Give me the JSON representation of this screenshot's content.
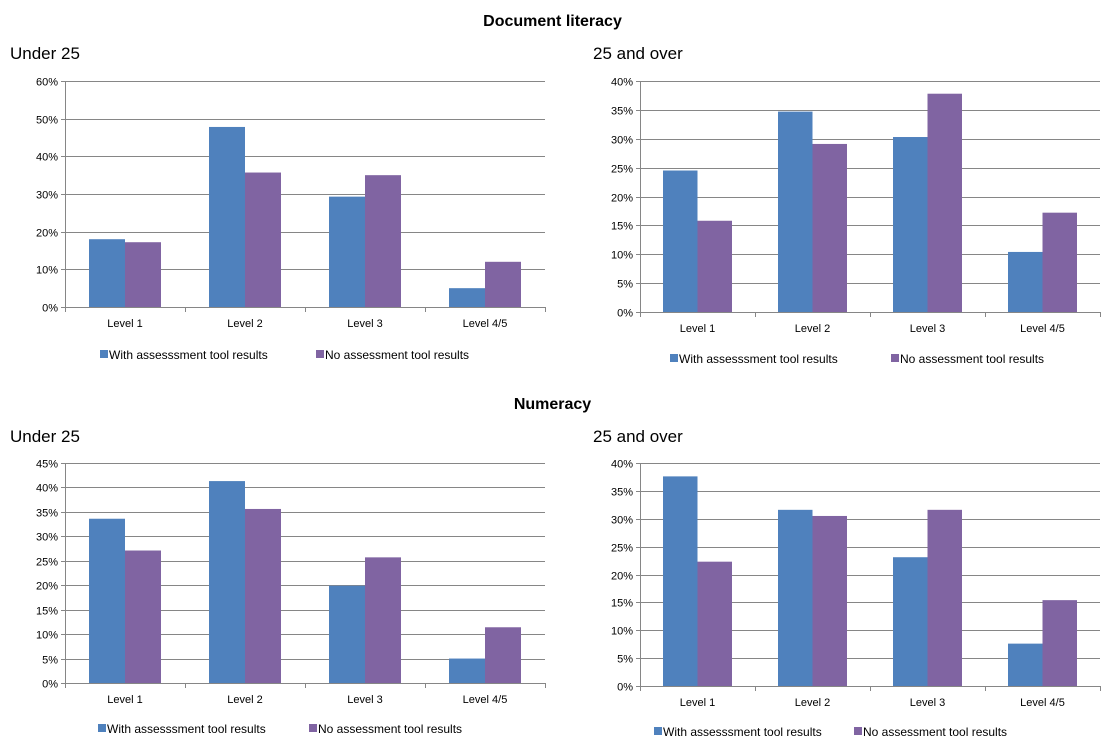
{
  "sections": [
    {
      "title": "Document literacy"
    },
    {
      "title": "Numeracy"
    }
  ],
  "chart_data": [
    {
      "type": "bar",
      "title": "Under 25",
      "categories": [
        "Level 1",
        "Level 2",
        "Level 3",
        "Level 4/5"
      ],
      "series": [
        {
          "name": "With assesssment tool results",
          "values": [
            18,
            47.8,
            29.3,
            5
          ]
        },
        {
          "name": "No assessment tool results",
          "values": [
            17.2,
            35.7,
            35,
            12
          ]
        }
      ],
      "ylim": [
        0,
        60
      ],
      "yticks": [
        0,
        10,
        20,
        30,
        40,
        50,
        60
      ],
      "ytick_labels": [
        "0%",
        "10%",
        "20%",
        "30%",
        "40%",
        "50%",
        "60%"
      ],
      "grid": true,
      "legend_position": "bottom"
    },
    {
      "type": "bar",
      "title": "25 and over",
      "categories": [
        "Level 1",
        "Level 2",
        "Level 3",
        "Level 4/5"
      ],
      "series": [
        {
          "name": "With assesssment tool results",
          "values": [
            24.5,
            34.7,
            30.3,
            10.4
          ]
        },
        {
          "name": "No assessment tool results",
          "values": [
            15.8,
            29.1,
            37.8,
            17.2
          ]
        }
      ],
      "ylim": [
        0,
        40
      ],
      "yticks": [
        0,
        5,
        10,
        15,
        20,
        25,
        30,
        35,
        40
      ],
      "ytick_labels": [
        "0%",
        "5%",
        "10%",
        "15%",
        "20%",
        "25%",
        "30%",
        "35%",
        "40%"
      ],
      "grid": true,
      "legend_position": "bottom"
    },
    {
      "type": "bar",
      "title": "Under 25",
      "categories": [
        "Level 1",
        "Level 2",
        "Level 3",
        "Level 4/5"
      ],
      "series": [
        {
          "name": "With assesssment tool results",
          "values": [
            33.6,
            41.3,
            19.9,
            5
          ]
        },
        {
          "name": "No assessment tool results",
          "values": [
            27.1,
            35.6,
            25.7,
            11.4
          ]
        }
      ],
      "ylim": [
        0,
        45
      ],
      "yticks": [
        0,
        5,
        10,
        15,
        20,
        25,
        30,
        35,
        40,
        45
      ],
      "ytick_labels": [
        "0%",
        "5%",
        "10%",
        "15%",
        "20%",
        "25%",
        "30%",
        "35%",
        "40%",
        "45%"
      ],
      "grid": true,
      "legend_position": "bottom"
    },
    {
      "type": "bar",
      "title": "25 and over",
      "categories": [
        "Level 1",
        "Level 2",
        "Level 3",
        "Level 4/5"
      ],
      "series": [
        {
          "name": "With assesssment tool results",
          "values": [
            37.6,
            31.6,
            23.1,
            7.6
          ]
        },
        {
          "name": "No assessment tool results",
          "values": [
            22.3,
            30.5,
            31.6,
            15.4
          ]
        }
      ],
      "ylim": [
        0,
        40
      ],
      "yticks": [
        0,
        5,
        10,
        15,
        20,
        25,
        30,
        35,
        40
      ],
      "ytick_labels": [
        "0%",
        "5%",
        "10%",
        "15%",
        "20%",
        "25%",
        "30%",
        "35%",
        "40%"
      ],
      "grid": true,
      "legend_position": "bottom"
    }
  ],
  "colors": {
    "series_1": "#4F81BD",
    "series_2": "#8064A2",
    "grid": "#868686",
    "axis": "#868686"
  }
}
